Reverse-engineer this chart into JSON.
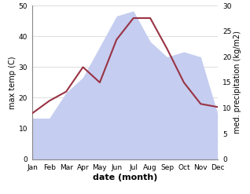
{
  "months": [
    "Jan",
    "Feb",
    "Mar",
    "Apr",
    "May",
    "Jun",
    "Jul",
    "Aug",
    "Sep",
    "Oct",
    "Nov",
    "Dec"
  ],
  "temperature": [
    15,
    19,
    22,
    30,
    25,
    39,
    46,
    46,
    36,
    25,
    18,
    17
  ],
  "precipitation": [
    8,
    8,
    13,
    16,
    22,
    28,
    29,
    23,
    20,
    21,
    20,
    9
  ],
  "temp_color": "#993344",
  "precip_fill_color": "#c5cdf0",
  "ylim_temp": [
    0,
    50
  ],
  "ylim_precip": [
    0,
    30
  ],
  "xlabel": "date (month)",
  "ylabel_left": "max temp (C)",
  "ylabel_right": "med. precipitation (kg/m2)",
  "bg_color": "#ffffff",
  "grid_color": "#d0d0d0",
  "label_fontsize": 7,
  "tick_fontsize": 6.5
}
